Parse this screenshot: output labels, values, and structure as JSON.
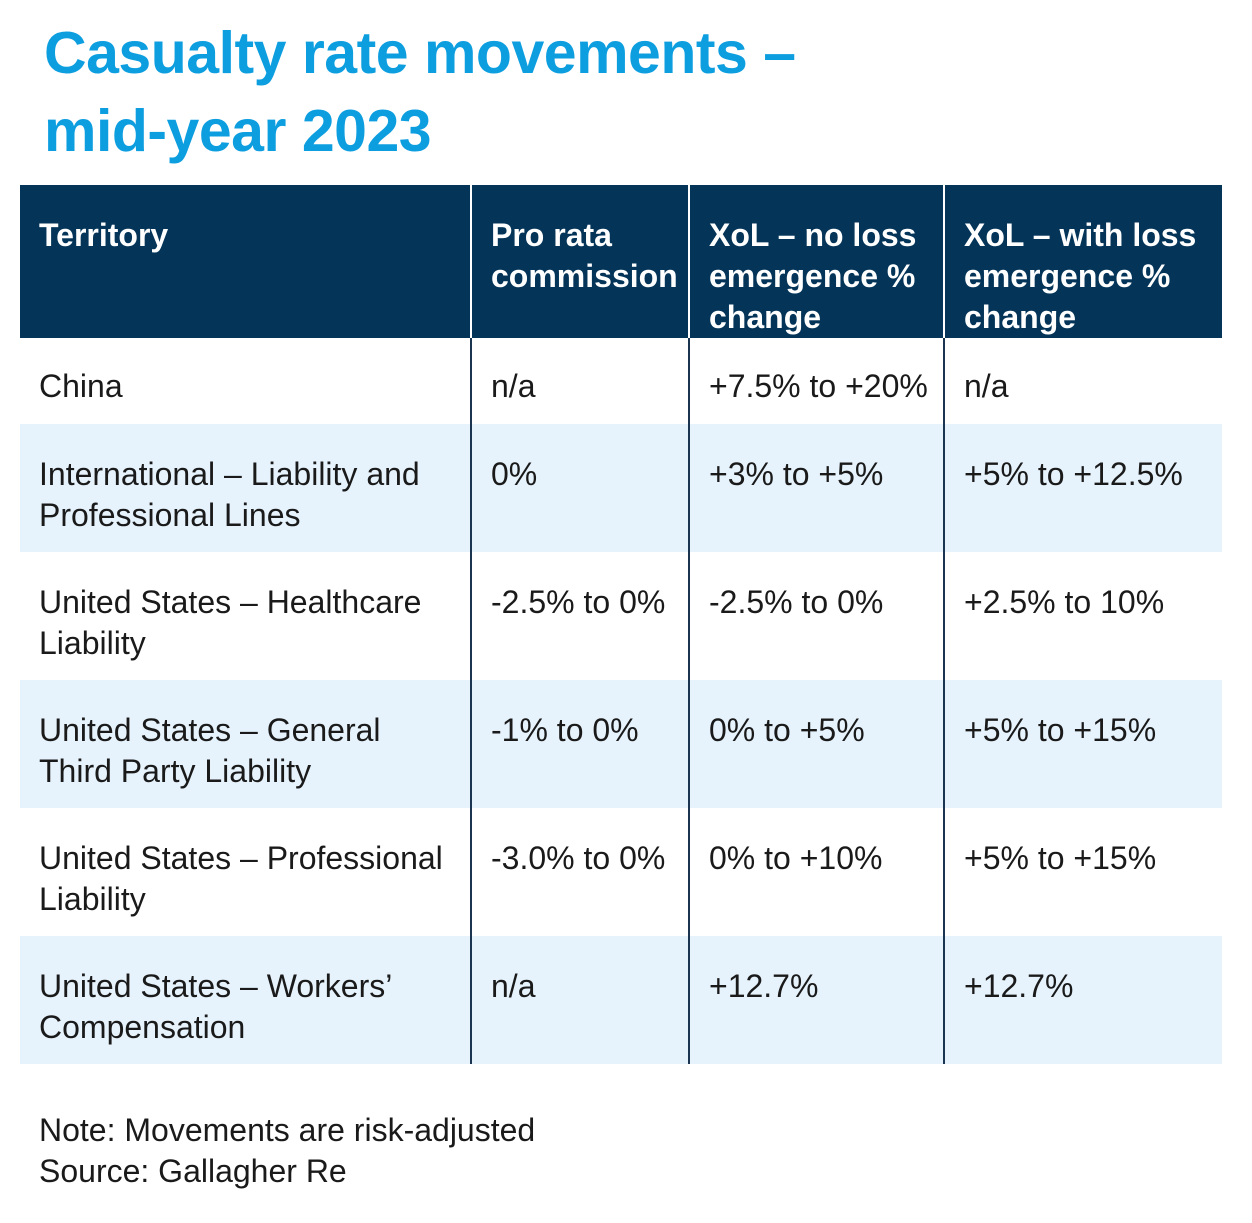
{
  "title": {
    "line1": "Casualty rate movements –",
    "line2": "mid-year 2023"
  },
  "table": {
    "headers": [
      "Territory",
      "Pro rata commission",
      "XoL – no loss emergence % change",
      "XoL – with loss emergence % change"
    ],
    "rows": [
      {
        "territory": "China",
        "pro_rata": "n/a",
        "xol_no_loss": "+7.5% to +20%",
        "xol_with_loss": "n/a"
      },
      {
        "territory": "International – Liability and Professional Lines",
        "pro_rata": "0%",
        "xol_no_loss": "+3% to +5%",
        "xol_with_loss": "+5% to +12.5%"
      },
      {
        "territory": "United States – Healthcare Liability",
        "pro_rata": "-2.5% to 0%",
        "xol_no_loss": "-2.5% to 0%",
        "xol_with_loss": "+2.5% to 10%"
      },
      {
        "territory": "United States – General Third Party Liability",
        "pro_rata": "-1% to 0%",
        "xol_no_loss": "0% to +5%",
        "xol_with_loss": "+5% to +15%"
      },
      {
        "territory": "United States – Professional Liability",
        "pro_rata": "-3.0% to 0%",
        "xol_no_loss": "0% to +10%",
        "xol_with_loss": "+5% to +15%"
      },
      {
        "territory": "United States – Workers’ Compensation",
        "pro_rata": "n/a",
        "xol_no_loss": "+12.7%",
        "xol_with_loss": "+12.7%"
      }
    ]
  },
  "notes": {
    "note": "Note: Movements are risk-adjusted",
    "source": "Source: Gallagher Re"
  },
  "colors": {
    "title": "#0d9ee0",
    "header_bg": "#043458",
    "header_text": "#ffffff",
    "row_alt_bg": "#e6f3fc",
    "row_bg": "#ffffff",
    "text": "#1a1a1a"
  }
}
